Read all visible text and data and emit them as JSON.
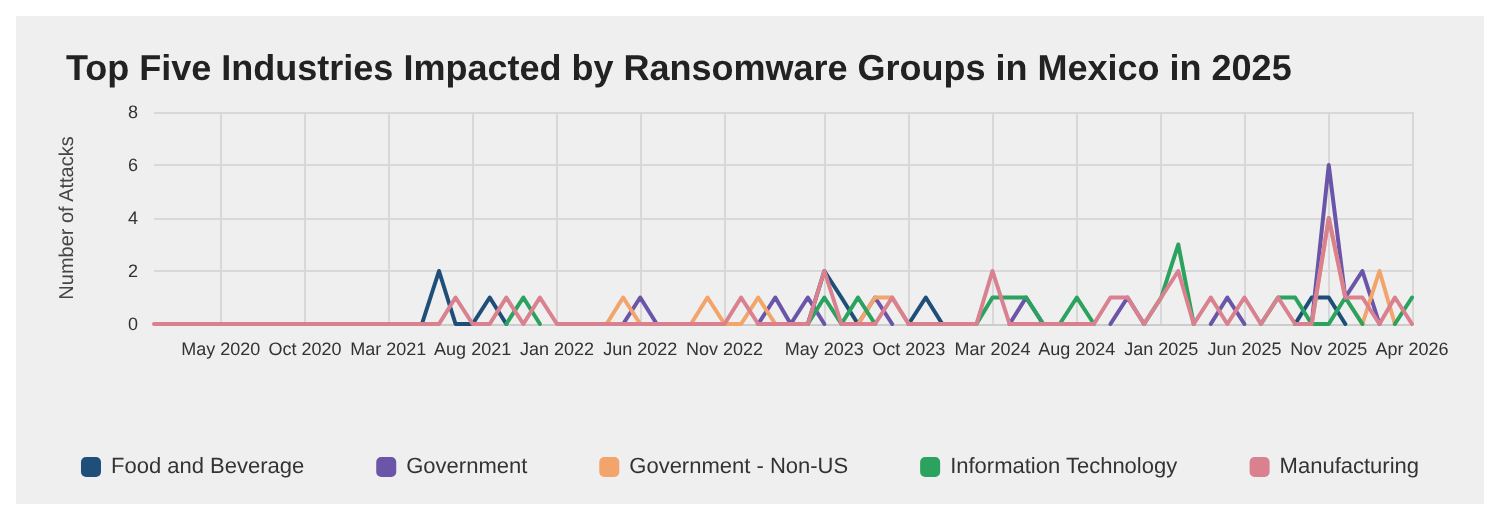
{
  "chart_data": {
    "type": "line",
    "title": "Top Five Industries Impacted by Ransomware Groups in Mexico in 2025",
    "ylabel": "Number of Attacks",
    "x": [
      "2020-01",
      "2020-02",
      "2020-03",
      "2020-04",
      "2020-05",
      "2020-06",
      "2020-07",
      "2020-08",
      "2020-09",
      "2020-10",
      "2020-11",
      "2020-12",
      "2021-01",
      "2021-02",
      "2021-03",
      "2021-04",
      "2021-05",
      "2021-06",
      "2021-07",
      "2021-08",
      "2021-09",
      "2021-10",
      "2021-11",
      "2021-12",
      "2022-01",
      "2022-02",
      "2022-03",
      "2022-04",
      "2022-05",
      "2022-06",
      "2022-07",
      "2022-08",
      "2022-09",
      "2022-10",
      "2022-11",
      "2022-12",
      "2023-01",
      "2023-02",
      "2023-03",
      "2023-04",
      "2023-05",
      "2023-06",
      "2023-07",
      "2023-08",
      "2023-09",
      "2023-10",
      "2023-11",
      "2023-12",
      "2024-01",
      "2024-02",
      "2024-03",
      "2024-04",
      "2024-05",
      "2024-06",
      "2024-07",
      "2024-08",
      "2024-09",
      "2024-10",
      "2024-11",
      "2024-12",
      "2025-01",
      "2025-02",
      "2025-03",
      "2025-04",
      "2025-05",
      "2025-06",
      "2025-07",
      "2025-08",
      "2025-09",
      "2025-10",
      "2025-11",
      "2025-12",
      "2026-01",
      "2026-02",
      "2026-03",
      "2026-04"
    ],
    "series": [
      {
        "name": "Food and Beverage",
        "color": "#1f4e79",
        "values": [
          null,
          null,
          null,
          null,
          null,
          null,
          null,
          null,
          null,
          null,
          null,
          null,
          null,
          null,
          null,
          null,
          0,
          2,
          0,
          0,
          1,
          0,
          null,
          null,
          null,
          null,
          null,
          null,
          null,
          null,
          null,
          null,
          null,
          null,
          null,
          null,
          null,
          null,
          null,
          0,
          2,
          1,
          0,
          null,
          null,
          0,
          1,
          0,
          null,
          null,
          null,
          null,
          null,
          null,
          null,
          null,
          null,
          null,
          null,
          null,
          null,
          null,
          null,
          null,
          null,
          null,
          null,
          null,
          0,
          1,
          1,
          0,
          null,
          null,
          null,
          null
        ]
      },
      {
        "name": "Government",
        "color": "#6a55a8",
        "values": [
          null,
          null,
          null,
          null,
          null,
          null,
          null,
          null,
          null,
          null,
          null,
          null,
          null,
          null,
          null,
          null,
          null,
          null,
          null,
          null,
          null,
          null,
          null,
          null,
          null,
          null,
          null,
          null,
          0,
          1,
          0,
          null,
          null,
          null,
          null,
          null,
          0,
          1,
          0,
          1,
          0,
          null,
          0,
          1,
          0,
          null,
          null,
          null,
          null,
          null,
          null,
          0,
          1,
          0,
          null,
          null,
          null,
          0,
          1,
          0,
          null,
          null,
          null,
          0,
          1,
          0,
          null,
          null,
          null,
          0,
          6,
          1,
          2,
          0,
          null,
          null
        ]
      },
      {
        "name": "Government - Non-US",
        "color": "#f2a46b",
        "values": [
          null,
          null,
          null,
          null,
          null,
          null,
          null,
          null,
          null,
          null,
          null,
          null,
          null,
          null,
          null,
          null,
          null,
          null,
          null,
          null,
          null,
          null,
          null,
          null,
          null,
          null,
          null,
          0,
          1,
          0,
          null,
          null,
          0,
          1,
          0,
          0,
          1,
          0,
          null,
          null,
          null,
          null,
          0,
          1,
          1,
          0,
          null,
          null,
          null,
          null,
          null,
          null,
          null,
          null,
          null,
          null,
          null,
          null,
          null,
          null,
          null,
          null,
          null,
          null,
          null,
          null,
          null,
          null,
          null,
          0,
          4,
          1,
          0,
          2,
          0,
          null
        ]
      },
      {
        "name": "Information Technology",
        "color": "#2ca25f",
        "values": [
          null,
          null,
          null,
          null,
          null,
          null,
          null,
          null,
          null,
          null,
          null,
          null,
          null,
          null,
          null,
          null,
          null,
          null,
          null,
          null,
          null,
          0,
          1,
          0,
          null,
          null,
          null,
          null,
          null,
          null,
          null,
          null,
          null,
          null,
          null,
          null,
          null,
          null,
          null,
          0,
          1,
          0,
          1,
          0,
          null,
          null,
          null,
          null,
          null,
          0,
          1,
          1,
          1,
          0,
          0,
          1,
          0,
          null,
          null,
          0,
          1,
          3,
          0,
          null,
          null,
          null,
          0,
          1,
          1,
          0,
          0,
          1,
          0,
          null,
          0,
          1
        ]
      },
      {
        "name": "Manufacturing",
        "color": "#d9818f",
        "values": [
          0,
          0,
          0,
          0,
          0,
          0,
          0,
          0,
          0,
          0,
          0,
          0,
          0,
          0,
          0,
          0,
          0,
          0,
          1,
          0,
          0,
          1,
          0,
          1,
          0,
          0,
          0,
          0,
          0,
          0,
          0,
          0,
          0,
          0,
          0,
          1,
          0,
          0,
          0,
          0,
          2,
          0,
          0,
          0,
          1,
          0,
          0,
          0,
          0,
          0,
          2,
          0,
          0,
          0,
          0,
          0,
          0,
          1,
          1,
          0,
          1,
          2,
          0,
          1,
          0,
          1,
          0,
          1,
          0,
          0,
          4,
          1,
          1,
          0,
          1,
          0
        ]
      }
    ],
    "xlim": [
      "2020-01",
      "2026-04"
    ],
    "xticks": [
      {
        "value": "2020-05",
        "label": "May 2020"
      },
      {
        "value": "2020-10",
        "label": "Oct 2020"
      },
      {
        "value": "2021-03",
        "label": "Mar 2021"
      },
      {
        "value": "2021-08",
        "label": "Aug 2021"
      },
      {
        "value": "2022-01",
        "label": "Jan 2022"
      },
      {
        "value": "2022-06",
        "label": "Jun 2022"
      },
      {
        "value": "2022-11",
        "label": "Nov 2022"
      },
      {
        "value": "2023-05",
        "label": "May 2023"
      },
      {
        "value": "2023-10",
        "label": "Oct 2023"
      },
      {
        "value": "2024-03",
        "label": "Mar 2024"
      },
      {
        "value": "2024-08",
        "label": "Aug 2024"
      },
      {
        "value": "2025-01",
        "label": "Jan 2025"
      },
      {
        "value": "2025-06",
        "label": "Jun 2025"
      },
      {
        "value": "2025-11",
        "label": "Nov 2025"
      },
      {
        "value": "2026-04",
        "label": "Apr 2026"
      }
    ],
    "ylim": [
      0,
      8
    ],
    "yticks": [
      0,
      2,
      4,
      6,
      8
    ],
    "grid": true,
    "legend": "bottom",
    "marker": "none",
    "line_style": "solid"
  }
}
